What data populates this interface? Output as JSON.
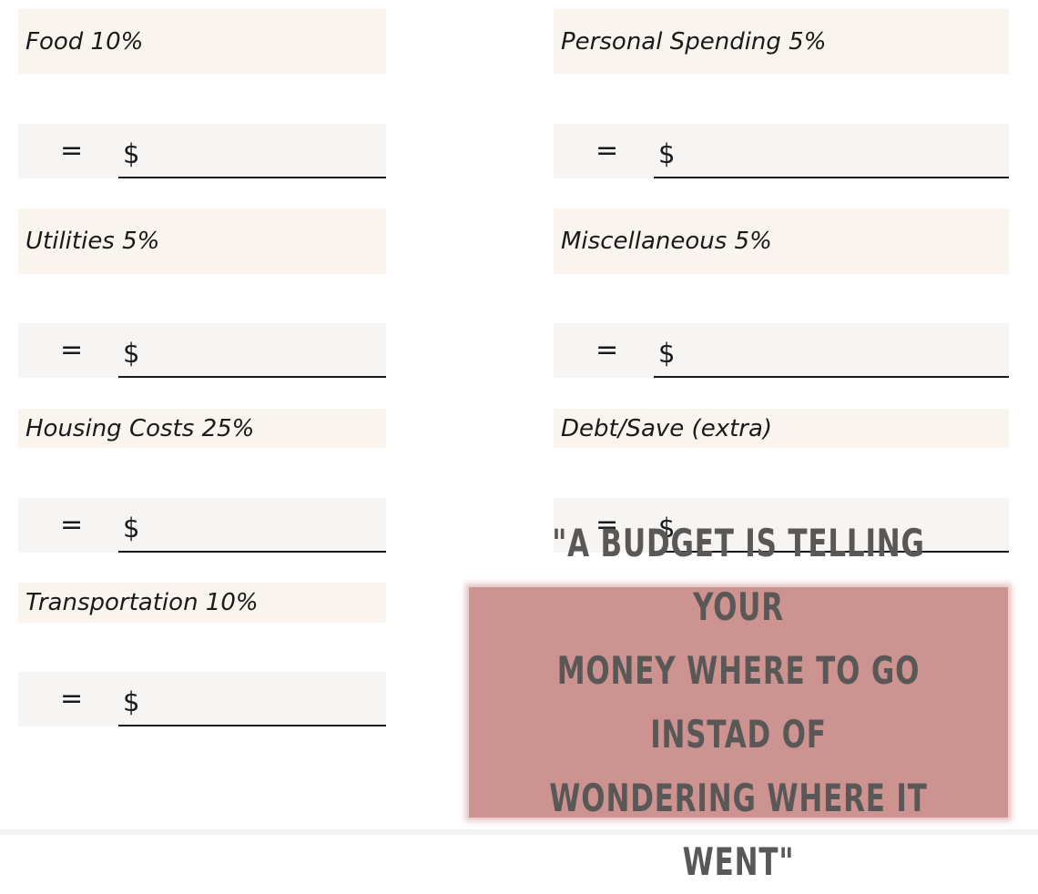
{
  "categories": [
    {
      "label": "Food 10%",
      "eq": "=",
      "currency": "$"
    },
    {
      "label": "Utilities 5%",
      "eq": "=",
      "currency": "$"
    },
    {
      "label": "Housing Costs 25%",
      "eq": "=",
      "currency": "$"
    },
    {
      "label": "Transportation 10%",
      "eq": "=",
      "currency": "$"
    },
    {
      "label": "Personal Spending 5%",
      "eq": "=",
      "currency": "$"
    },
    {
      "label": "Miscellaneous 5%",
      "eq": "=",
      "currency": "$"
    },
    {
      "label": "Debt/Save (extra)",
      "eq": "=",
      "currency": "$"
    }
  ],
  "quote": {
    "line1": "\"A BUDGET IS TELLING YOUR",
    "line2": "MONEY WHERE TO GO INSTAD OF",
    "line3": "WONDERING WHERE IT WENT\""
  },
  "colors": {
    "label_bg": "#f9f4ee",
    "entry_bg": "#f6f5f3",
    "quote_bg": "#cd9390",
    "quote_text": "#5a5856"
  }
}
